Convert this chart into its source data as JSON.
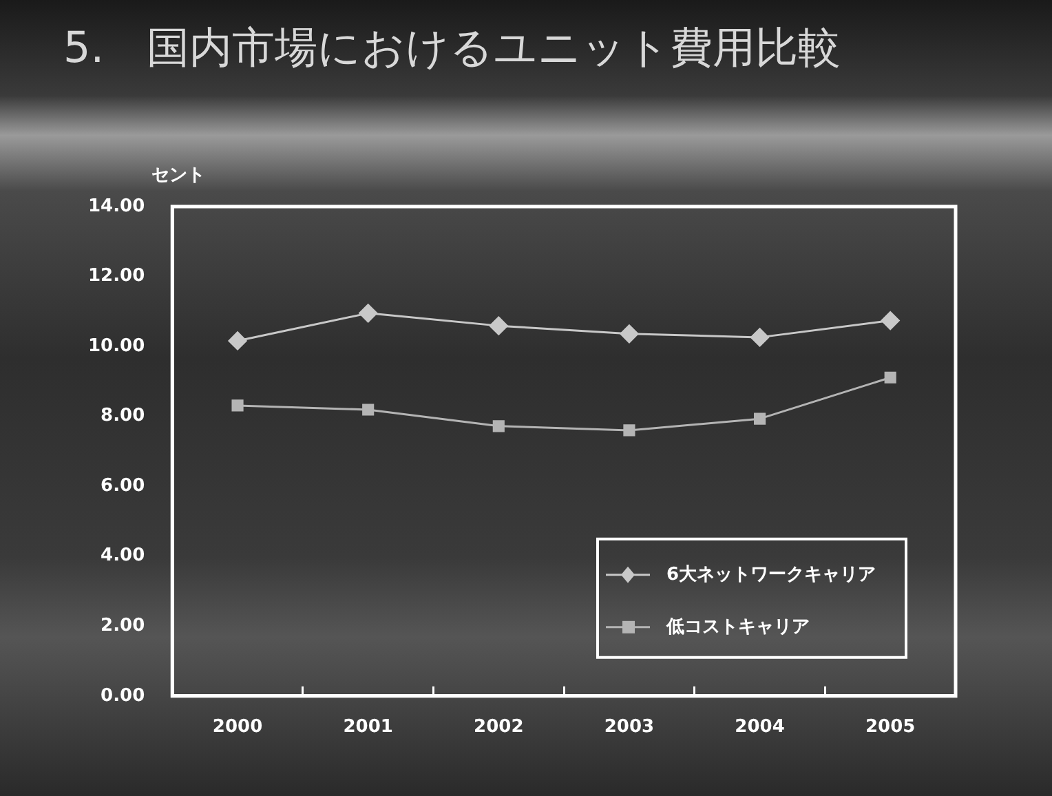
{
  "chart_data": {
    "type": "line",
    "title": "5.　国内市場におけるユニット費用比較",
    "ylabel": "セント",
    "categories": [
      "2000",
      "2001",
      "2002",
      "2003",
      "2004",
      "2005"
    ],
    "series": [
      {
        "name": "6大ネットワークキャリア",
        "color": "#c8c8c8",
        "marker": "diamond",
        "values": [
          10.16,
          10.95,
          10.59,
          10.36,
          10.26,
          10.74
        ]
      },
      {
        "name": "低コストキャリア",
        "color": "#b4b4b4",
        "marker": "square",
        "values": [
          8.31,
          8.19,
          7.72,
          7.6,
          7.93,
          9.11
        ]
      }
    ],
    "ylim": [
      0,
      14
    ],
    "yticks": [
      {
        "value": 0,
        "label": "0.00"
      },
      {
        "value": 2,
        "label": "2.00"
      },
      {
        "value": 4,
        "label": "4.00"
      },
      {
        "value": 6,
        "label": "6.00"
      },
      {
        "value": 8,
        "label": "8.00"
      },
      {
        "value": 10,
        "label": "10.00"
      },
      {
        "value": 12,
        "label": "12.00"
      },
      {
        "value": 14,
        "label": "14.00"
      }
    ],
    "grid": false,
    "legend": "bottom right",
    "line_style": "solid"
  }
}
